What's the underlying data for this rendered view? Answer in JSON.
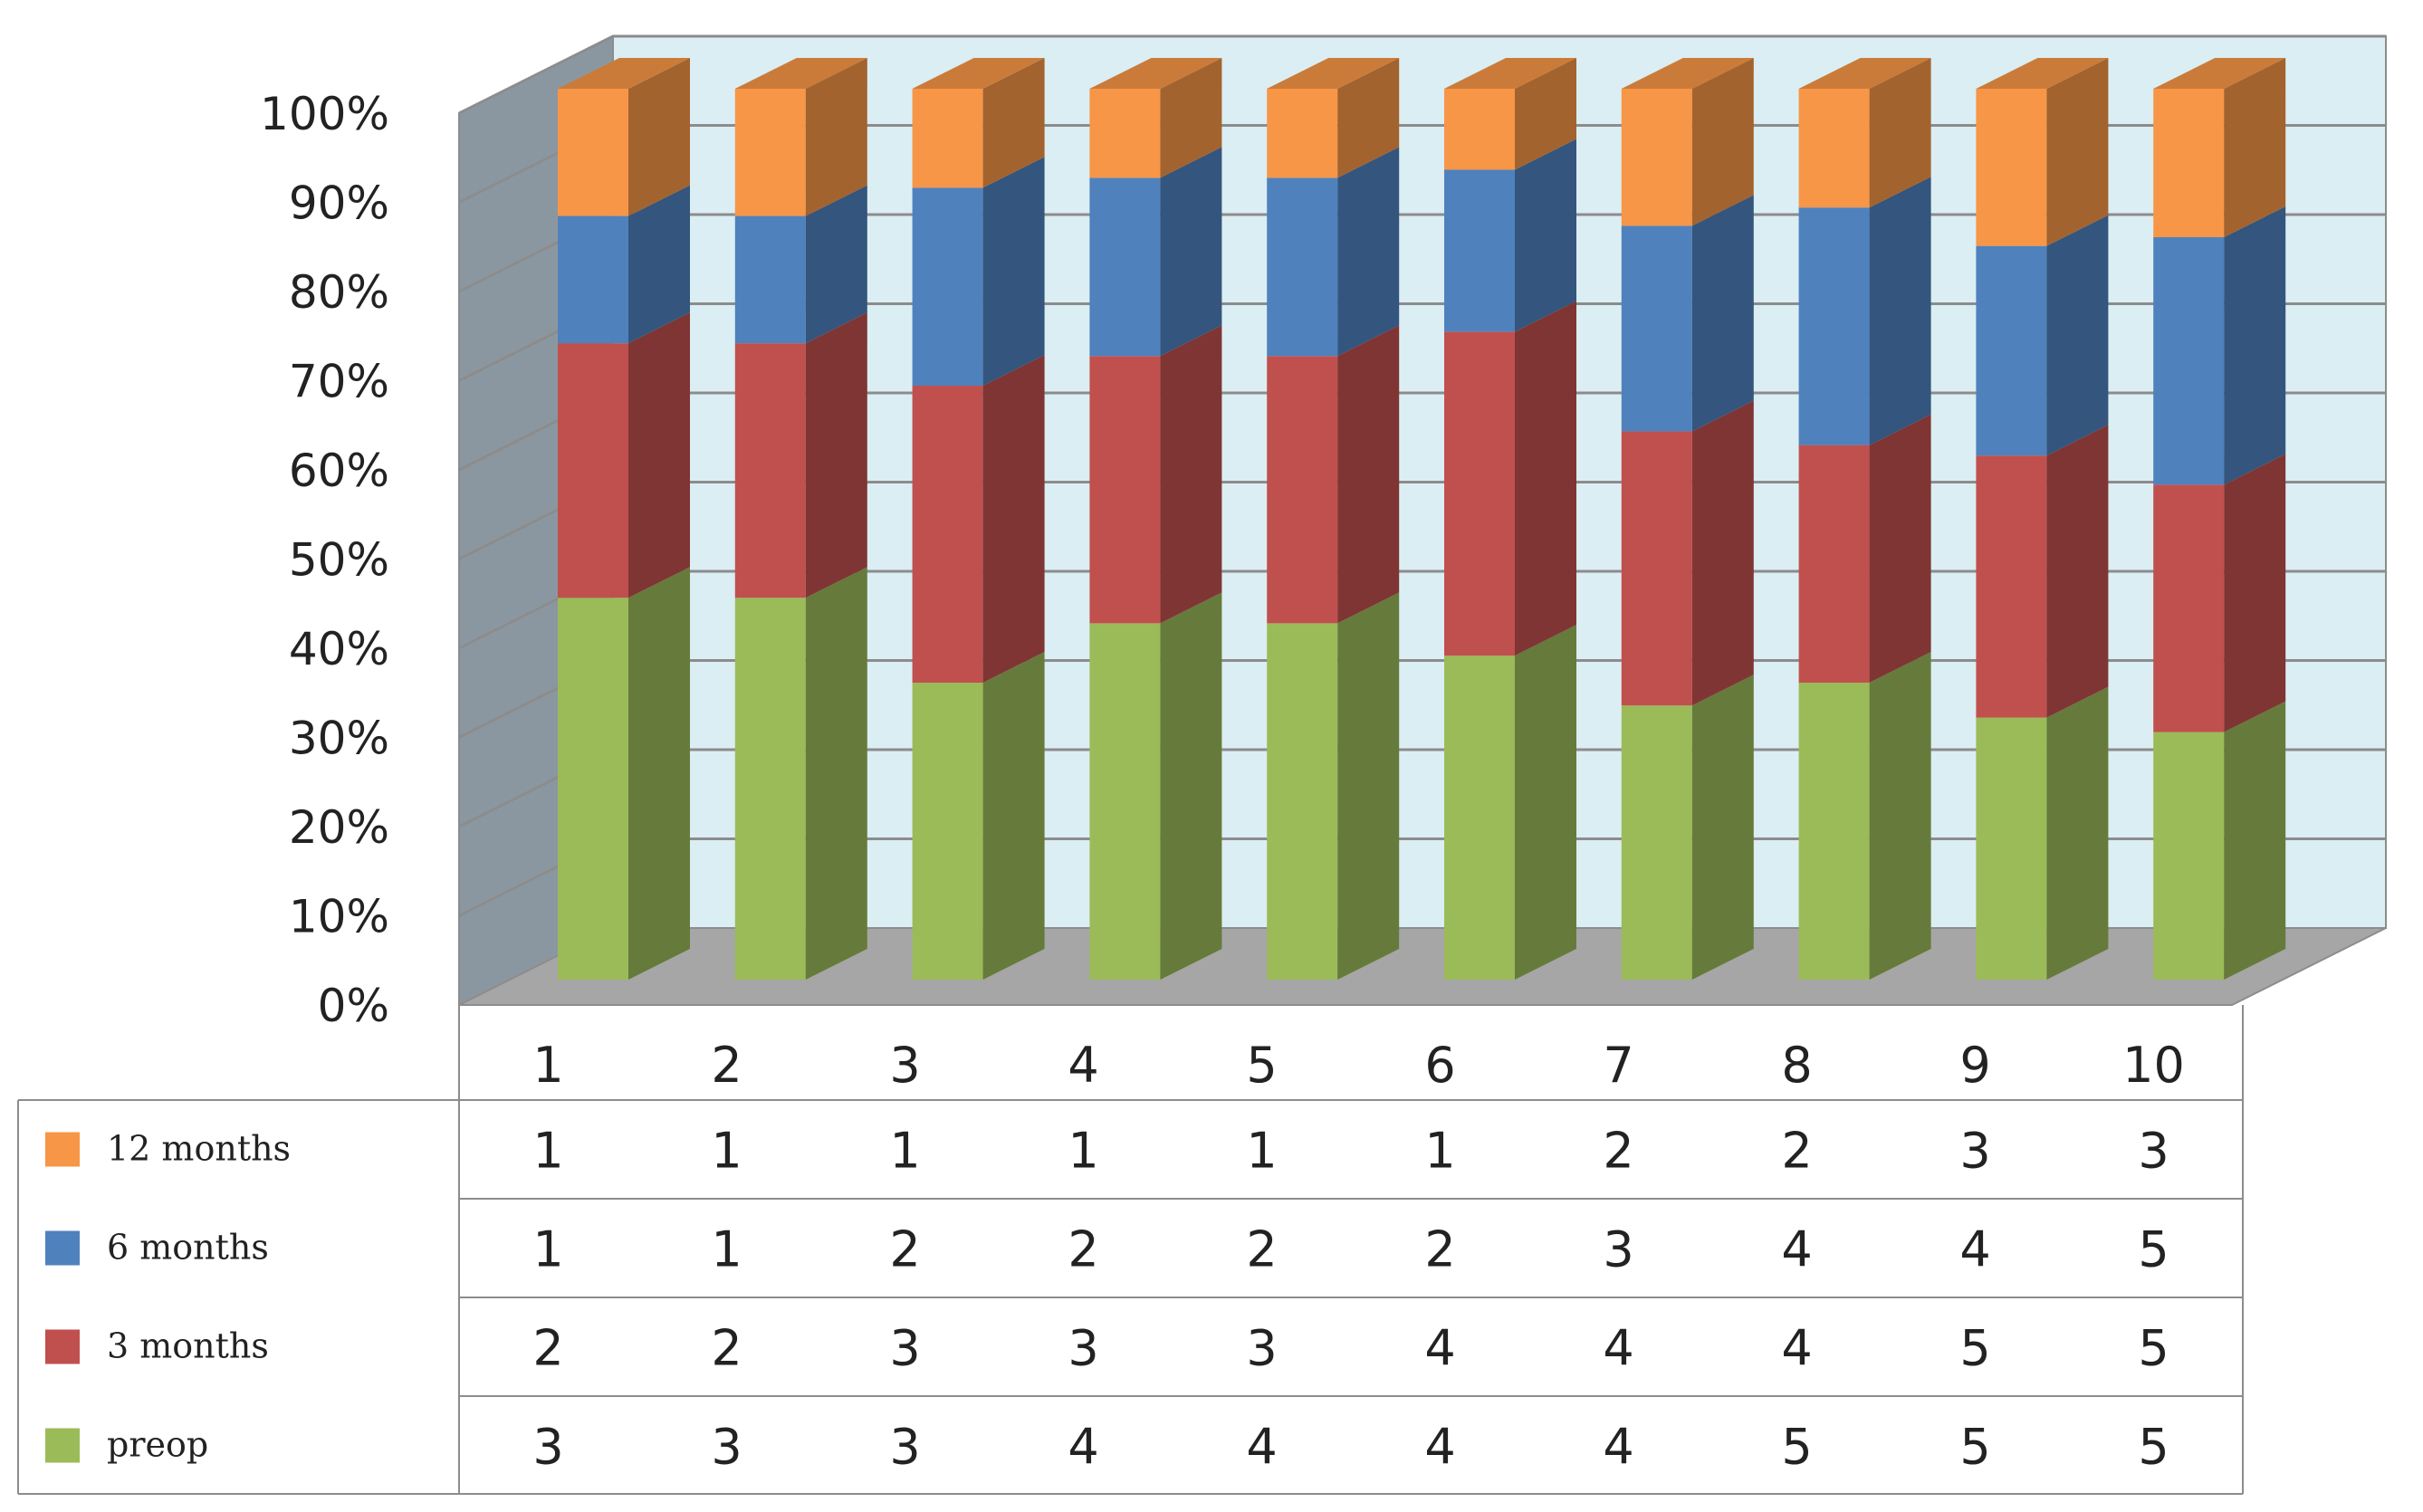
{
  "chart_data": {
    "type": "bar",
    "stacked": true,
    "normalized": true,
    "three_d": true,
    "categories": [
      "1",
      "2",
      "3",
      "4",
      "5",
      "6",
      "7",
      "8",
      "9",
      "10"
    ],
    "series": [
      {
        "name": "preop",
        "color": "#9bbb59",
        "values": [
          3,
          3,
          3,
          4,
          4,
          4,
          4,
          5,
          5,
          5
        ]
      },
      {
        "name": "3 months",
        "color": "#c0504d",
        "values": [
          2,
          2,
          3,
          3,
          3,
          4,
          4,
          4,
          5,
          5
        ]
      },
      {
        "name": "6 months",
        "color": "#4f81bd",
        "values": [
          1,
          1,
          2,
          2,
          2,
          2,
          3,
          4,
          4,
          5
        ]
      },
      {
        "name": "12 months",
        "color": "#f79646",
        "values": [
          1,
          1,
          1,
          1,
          1,
          1,
          2,
          2,
          3,
          3
        ]
      }
    ],
    "yticks": [
      "0%",
      "10%",
      "20%",
      "30%",
      "40%",
      "50%",
      "60%",
      "70%",
      "80%",
      "90%",
      "100%"
    ],
    "ylim": [
      0,
      100
    ],
    "grid": true,
    "data_table": true,
    "title": "",
    "xlabel": "",
    "ylabel": ""
  }
}
